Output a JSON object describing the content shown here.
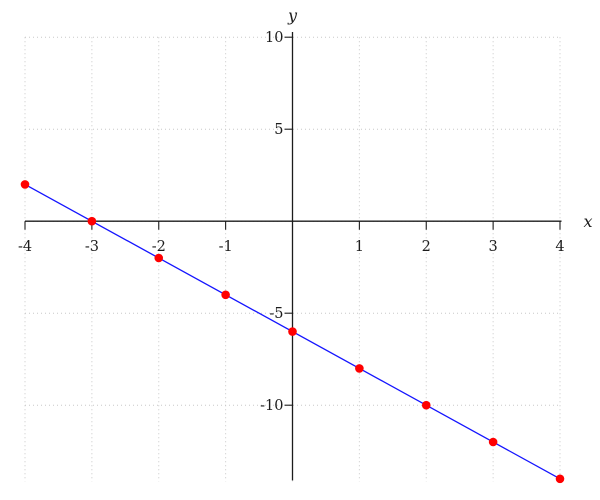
{
  "chart_data": {
    "type": "scatter",
    "title": "",
    "xlabel": "x",
    "ylabel": "y",
    "xlim": [
      -4,
      4
    ],
    "ylim": [
      -14.2,
      10.2
    ],
    "x_ticks": [
      -4,
      -3,
      -2,
      -1,
      1,
      2,
      3,
      4
    ],
    "y_ticks": [
      10,
      5,
      -5,
      -10
    ],
    "axis_color": "#1c1c1c",
    "grid": {
      "style": "dotted",
      "color": "#c8c8c8",
      "x_lines": [
        -4,
        -3,
        -2,
        -1,
        0,
        1,
        2,
        3,
        4
      ],
      "y_lines": [
        10,
        5,
        0,
        -5,
        -10
      ]
    },
    "legend": null,
    "series": [
      {
        "name": "line",
        "type": "line",
        "color": "#1515ff",
        "points": [
          [
            -4,
            2
          ],
          [
            4,
            -14
          ]
        ]
      },
      {
        "name": "data-points",
        "type": "scatter",
        "marker": "circle",
        "color": "#ff0000",
        "points": [
          [
            -4,
            2
          ],
          [
            -3,
            0
          ],
          [
            -2,
            -2
          ],
          [
            -1,
            -4
          ],
          [
            0,
            -6
          ],
          [
            1,
            -8
          ],
          [
            2,
            -10
          ],
          [
            3,
            -12
          ],
          [
            4,
            -14
          ]
        ]
      }
    ]
  }
}
